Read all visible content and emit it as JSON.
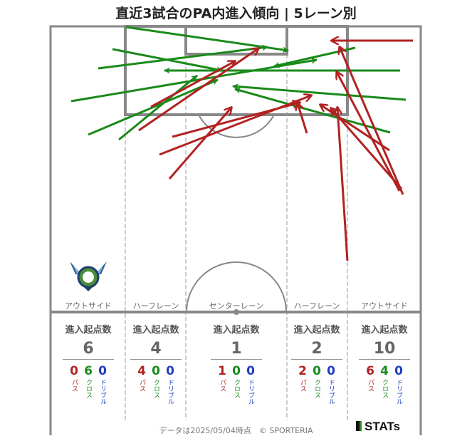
{
  "title": "直近3試合のPA内進入傾向 | 5レーン別",
  "colors": {
    "pass": "#b22222",
    "cross": "#1a8a1a",
    "dribble": "#1f3fbf"
  },
  "lanes": [
    {
      "label": "アウトサイド",
      "head": "進入起点数",
      "total": "6",
      "pass": "0",
      "cross": "6",
      "dribble": "0"
    },
    {
      "label": "ハーフレーン",
      "head": "進入起点数",
      "total": "4",
      "pass": "4",
      "cross": "0",
      "dribble": "0"
    },
    {
      "label": "センターレーン",
      "head": "進入起点数",
      "total": "1",
      "pass": "1",
      "cross": "0",
      "dribble": "0"
    },
    {
      "label": "ハーフレーン",
      "head": "進入起点数",
      "total": "2",
      "pass": "2",
      "cross": "0",
      "dribble": "0"
    },
    {
      "label": "アウトサイド",
      "head": "進入起点数",
      "total": "10",
      "pass": "6",
      "cross": "4",
      "dribble": "0"
    }
  ],
  "category_labels": {
    "pass": "パス",
    "cross": "クロス",
    "dribble": "ドリブル"
  },
  "logo_icon": "team-emblem-icon",
  "footer": "データは2025/05/04時点　© SPORTERIA",
  "brand": "STATs"
}
